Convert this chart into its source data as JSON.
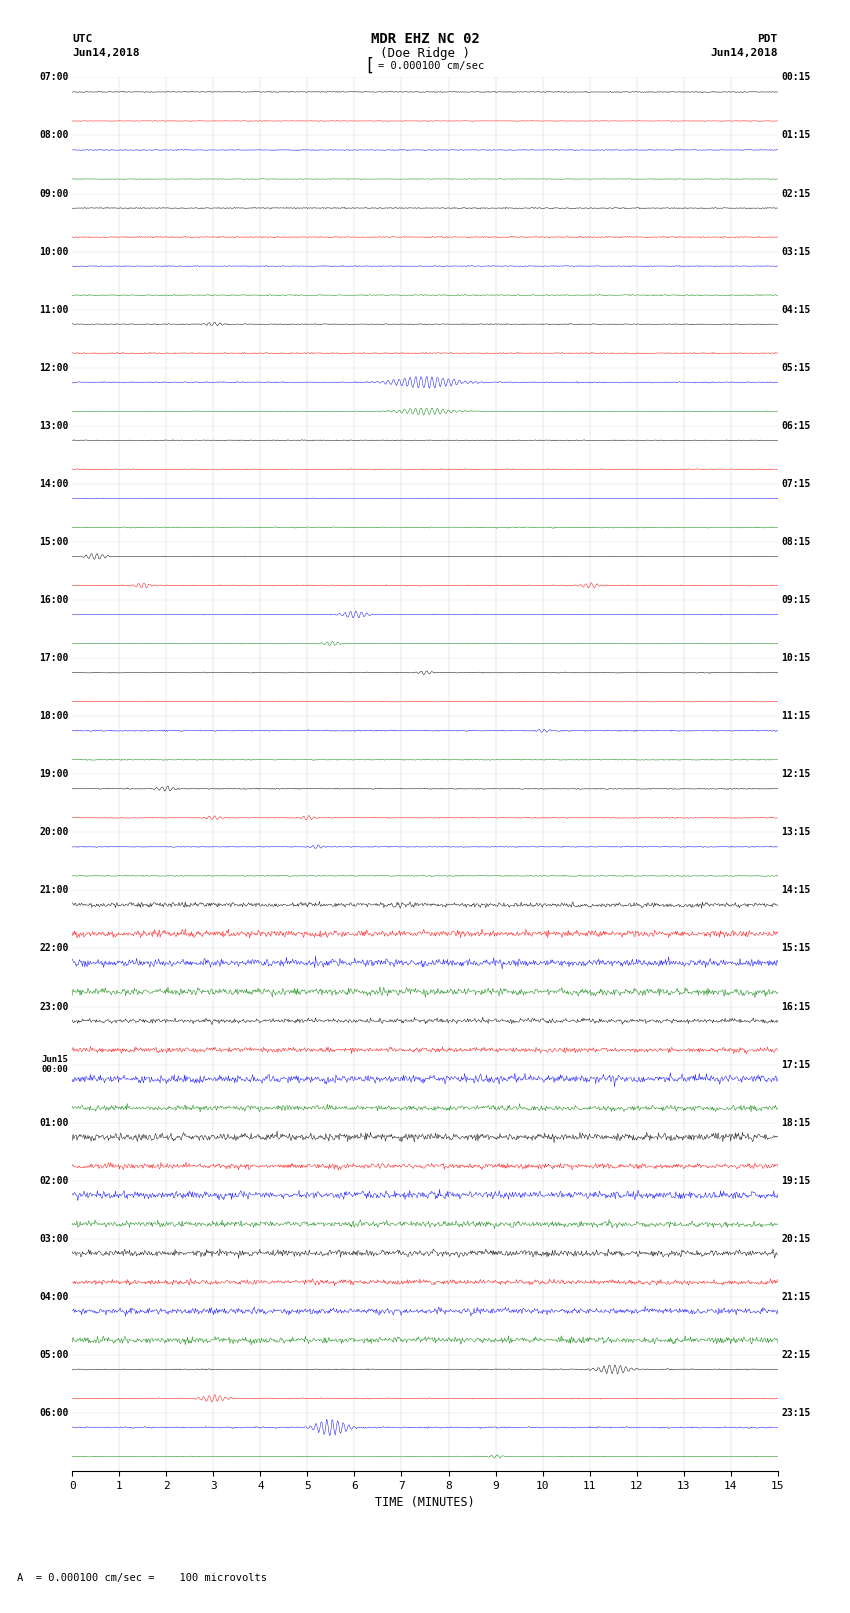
{
  "title_line1": "MDR EHZ NC 02",
  "title_line2": "(Doe Ridge )",
  "scale_label": "= 0.000100 cm/sec",
  "bottom_label": "A  = 0.000100 cm/sec =    100 microvolts",
  "utc_label1": "UTC",
  "utc_label2": "Jun14,2018",
  "pdt_label1": "PDT",
  "pdt_label2": "Jun14,2018",
  "xlabel": "TIME (MINUTES)",
  "n_rows": 48,
  "row_colors": [
    "black",
    "red",
    "blue",
    "green"
  ],
  "background_color": "white",
  "left_tick_hours": [
    "07:00",
    "08:00",
    "09:00",
    "10:00",
    "11:00",
    "12:00",
    "13:00",
    "14:00",
    "15:00",
    "16:00",
    "17:00",
    "18:00",
    "19:00",
    "20:00",
    "21:00",
    "22:00",
    "23:00",
    "Jun15\n00:00",
    "01:00",
    "02:00",
    "03:00",
    "04:00",
    "05:00",
    "06:00"
  ],
  "right_tick_labels": [
    "00:15",
    "01:15",
    "02:15",
    "03:15",
    "04:15",
    "05:15",
    "06:15",
    "07:15",
    "08:15",
    "09:15",
    "10:15",
    "11:15",
    "12:15",
    "13:15",
    "14:15",
    "15:15",
    "16:15",
    "17:15",
    "18:15",
    "19:15",
    "20:15",
    "21:15",
    "22:15",
    "23:15"
  ]
}
